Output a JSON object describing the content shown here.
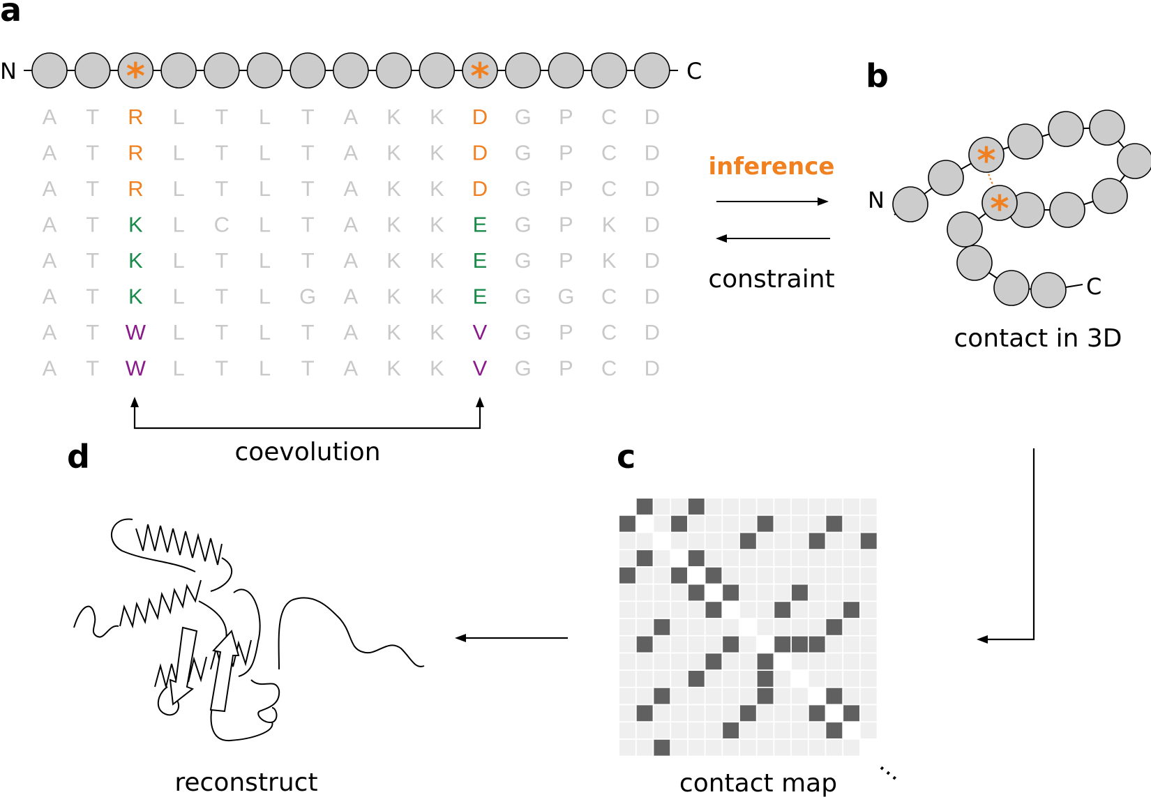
{
  "colors": {
    "highlight": "#f08020",
    "green": "#1a8a4a",
    "purple": "#8a1a8a",
    "faded": "#c8c8c8",
    "bead_fill": "#cccccc",
    "map_background": "#efefef",
    "map_contact": "#606060"
  },
  "panels": {
    "a": "a",
    "b": "b",
    "c": "c",
    "d": "d"
  },
  "chain": {
    "n_label": "N",
    "c_label": "C",
    "bead_count": 15,
    "starred_beads": [
      3,
      11
    ],
    "star_symbol": "*"
  },
  "alignment": {
    "rows": [
      "ATRLTLTAKKDGPCD",
      "ATRLTLTAKKDGPCD",
      "ATRLTLTAKKDGPCD",
      "ATKLCLTAKKEGPKD",
      "ATKLTLTAKKEGPKD",
      "ATKLTLGAKKEGGCD",
      "ATWLTLTAKKVGPCD",
      "ATWLTLTAKKVGPCD"
    ],
    "highlight_columns": [
      3,
      11
    ],
    "row_color_groups": [
      "orange",
      "orange",
      "orange",
      "green",
      "green",
      "green",
      "purple",
      "purple"
    ],
    "coevolution_label": "coevolution"
  },
  "arrows": {
    "inference_label": "inference",
    "constraint_label": "constraint"
  },
  "structure_3d": {
    "n_label": "N",
    "c_label": "C",
    "caption": "contact in 3D"
  },
  "contact_map": {
    "caption": "contact map",
    "ellipsis": "…",
    "size": 15,
    "cells": [
      [
        0,
        1
      ],
      [
        0,
        4
      ],
      [
        1,
        0
      ],
      [
        1,
        3
      ],
      [
        1,
        8
      ],
      [
        1,
        12
      ],
      [
        2,
        7
      ],
      [
        2,
        11
      ],
      [
        2,
        14
      ],
      [
        3,
        1
      ],
      [
        3,
        4
      ],
      [
        4,
        0
      ],
      [
        4,
        3
      ],
      [
        4,
        5
      ],
      [
        5,
        4
      ],
      [
        5,
        6
      ],
      [
        5,
        10
      ],
      [
        6,
        5
      ],
      [
        6,
        9
      ],
      [
        6,
        13
      ],
      [
        7,
        2
      ],
      [
        7,
        12
      ],
      [
        8,
        1
      ],
      [
        8,
        6
      ],
      [
        8,
        9
      ],
      [
        8,
        10
      ],
      [
        8,
        11
      ],
      [
        9,
        5
      ],
      [
        9,
        8
      ],
      [
        10,
        4
      ],
      [
        10,
        8
      ],
      [
        11,
        2
      ],
      [
        11,
        8
      ],
      [
        11,
        12
      ],
      [
        12,
        1
      ],
      [
        12,
        7
      ],
      [
        12,
        11
      ],
      [
        12,
        13
      ],
      [
        13,
        6
      ],
      [
        13,
        12
      ],
      [
        14,
        2
      ]
    ]
  },
  "reconstruct": {
    "caption": "reconstruct"
  }
}
